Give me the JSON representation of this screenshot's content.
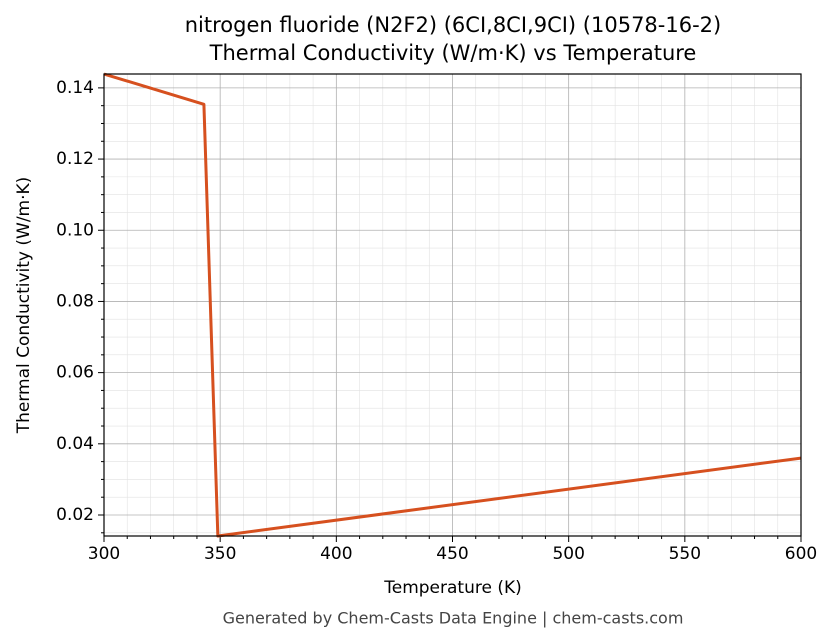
{
  "chart_data": {
    "type": "line",
    "title": "nitrogen fluoride (N2F2) (6CI,8CI,9CI) (10578-16-2)",
    "subtitle": "Thermal Conductivity (W/m·K) vs Temperature",
    "x_label": "Temperature (K)",
    "y_label": "Thermal Conductivity (W/m·K)",
    "footer": "Generated by Chem-Casts Data Engine | chem-casts.com",
    "x": [
      300,
      343,
      349,
      600
    ],
    "series": [
      {
        "name": "Thermal Conductivity",
        "color": "#d6501f",
        "values": [
          0.1439,
          0.1354,
          0.0141,
          0.036
        ]
      }
    ],
    "xlim": [
      300,
      600
    ],
    "xticks": [
      300,
      350,
      400,
      450,
      500,
      550,
      600
    ],
    "ylim": [
      0.0141,
      0.1439
    ],
    "yticks": [
      {
        "value": 0.02,
        "label": "0.02"
      },
      {
        "value": 0.04,
        "label": "0.04"
      },
      {
        "value": 0.06,
        "label": "0.06"
      },
      {
        "value": 0.08,
        "label": "0.08"
      },
      {
        "value": 0.1,
        "label": "0.10"
      },
      {
        "value": 0.12,
        "label": "0.12"
      },
      {
        "value": 0.14,
        "label": "0.14"
      }
    ],
    "grid": true,
    "minor_grid": true
  }
}
